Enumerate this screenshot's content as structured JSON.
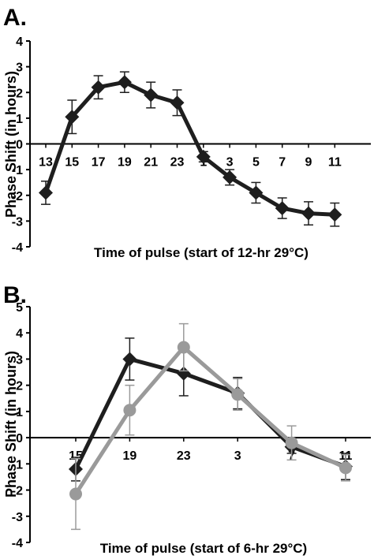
{
  "chart_data": [
    {
      "type": "line",
      "panel_label": "A.",
      "ylabel": "Phase Shift (in hours)",
      "xlabel": "Time of pulse (start of 12-hr 29°C)",
      "ylim": [
        -4,
        4
      ],
      "yticks": [
        -4,
        -3,
        -2,
        -1,
        0,
        1,
        2,
        3,
        4
      ],
      "categories": [
        "13",
        "15",
        "17",
        "19",
        "21",
        "23",
        "1",
        "3",
        "5",
        "7",
        "9",
        "11"
      ],
      "grid": false,
      "legend": "none",
      "series": [
        {
          "values": [
            -1.9,
            1.05,
            2.2,
            2.4,
            1.9,
            1.6,
            -0.5,
            -1.3,
            -1.9,
            -2.5,
            -2.7,
            -2.75
          ],
          "errors": [
            0.45,
            0.65,
            0.45,
            0.4,
            0.5,
            0.5,
            0.2,
            0.3,
            0.4,
            0.4,
            0.45,
            0.45
          ],
          "color": "#1e1e1e",
          "marker": "diamond"
        }
      ]
    },
    {
      "type": "line",
      "panel_label": "B.",
      "ylabel": "Phase Shift (in hours)",
      "xlabel": "Time of pulse (start of 6-hr 29°C)",
      "ylim": [
        -4,
        5
      ],
      "yticks": [
        -4,
        -3,
        -2,
        -1,
        0,
        1,
        2,
        3,
        4,
        5
      ],
      "categories": [
        "15",
        "19",
        "23",
        "3",
        "7",
        "11"
      ],
      "grid": false,
      "legend": "none",
      "series": [
        {
          "values": [
            -1.2,
            3.0,
            2.45,
            1.7,
            -0.35,
            -1.1
          ],
          "errors": [
            0.45,
            0.8,
            0.85,
            0.6,
            0.25,
            0.5
          ],
          "color": "#1e1e1e",
          "marker": "diamond"
        },
        {
          "values": [
            -2.15,
            1.05,
            3.45,
            1.65,
            -0.2,
            -1.15
          ],
          "errors": [
            1.35,
            0.95,
            0.9,
            0.6,
            0.65,
            0.5
          ],
          "color": "#9a9a9a",
          "marker": "circle"
        }
      ]
    }
  ]
}
